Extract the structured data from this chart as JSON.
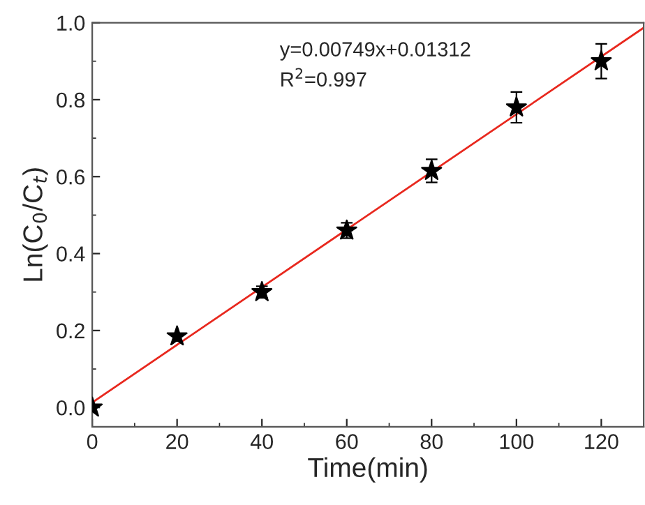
{
  "chart_data": {
    "type": "scatter",
    "xlabel": "Time(min)",
    "ylabel": "Ln(C$_{0}$/C$_{t}$)",
    "x": [
      0,
      20,
      40,
      60,
      80,
      100,
      120
    ],
    "series": [
      {
        "color": "#000000",
        "values": [
          0.0,
          0.185,
          0.3,
          0.46,
          0.615,
          0.78,
          0.9
        ],
        "errors": [
          null,
          null,
          0.015,
          0.02,
          0.03,
          0.04,
          0.045
        ],
        "marker": "star"
      },
      {
        "type": "line",
        "color": "#e8281e",
        "x": [
          0,
          130
        ],
        "values": [
          0.013,
          0.987
        ],
        "line_style": "solid"
      }
    ],
    "annotations": [
      {
        "text": "y=0.00749x+0.01312"
      },
      {
        "text": "R$^{2}$=0.997"
      }
    ],
    "xlim": [
      0,
      130
    ],
    "xticks": [
      0,
      20,
      40,
      60,
      80,
      100,
      120
    ],
    "ylim": [
      -0.05,
      1.0
    ],
    "yticks": [
      {
        "value": 0,
        "label": "0.0"
      },
      0.2,
      0.4,
      0.6,
      0.8,
      {
        "value": 1,
        "label": "1.0"
      }
    ],
    "grid": false,
    "legend": false
  }
}
